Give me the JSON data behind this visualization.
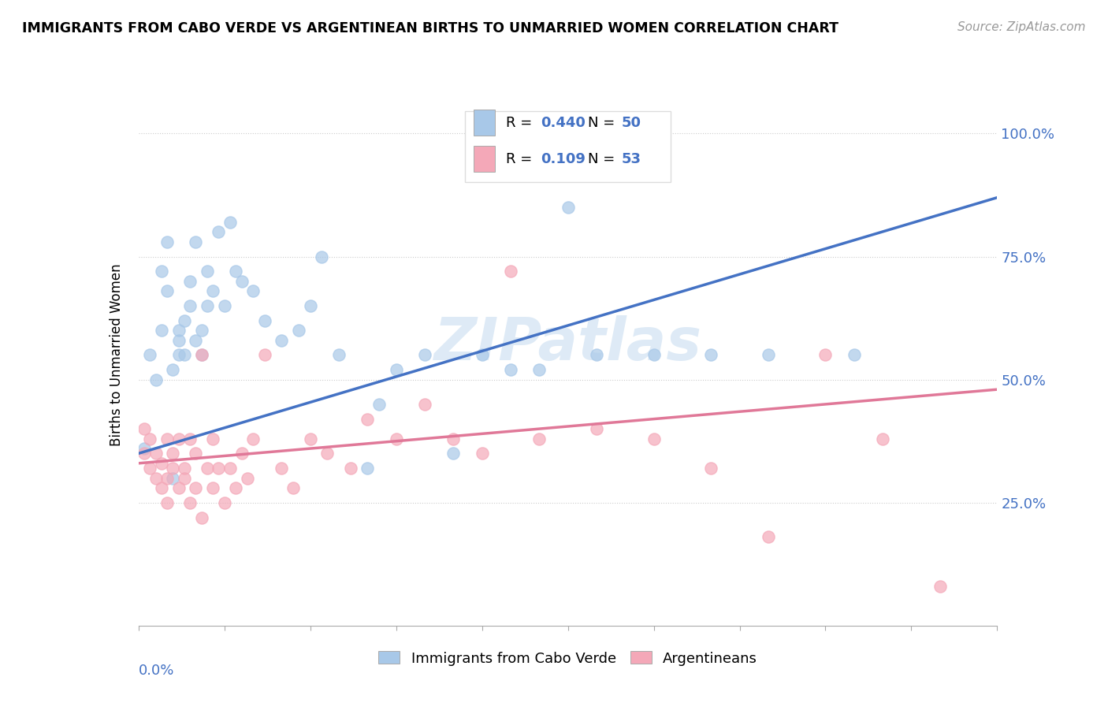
{
  "title": "IMMIGRANTS FROM CABO VERDE VS ARGENTINEAN BIRTHS TO UNMARRIED WOMEN CORRELATION CHART",
  "source": "Source: ZipAtlas.com",
  "ylabel": "Births to Unmarried Women",
  "color_blue": "#a8c8e8",
  "color_pink": "#f4a8b8",
  "color_blue_line": "#4472c4",
  "color_pink_line": "#e07898",
  "color_blue_text": "#4472c4",
  "background": "#ffffff",
  "xmin": 0.0,
  "xmax": 0.15,
  "ymin": 0.0,
  "ymax": 1.1,
  "ytick_positions": [
    0.25,
    0.5,
    0.75,
    1.0
  ],
  "ytick_labels": [
    "25.0%",
    "50.0%",
    "75.0%",
    "100.0%"
  ],
  "cabo_verde_x": [
    0.001,
    0.002,
    0.003,
    0.004,
    0.004,
    0.005,
    0.005,
    0.006,
    0.006,
    0.007,
    0.007,
    0.007,
    0.008,
    0.008,
    0.009,
    0.009,
    0.01,
    0.01,
    0.011,
    0.011,
    0.012,
    0.012,
    0.013,
    0.014,
    0.015,
    0.016,
    0.017,
    0.018,
    0.02,
    0.022,
    0.025,
    0.028,
    0.03,
    0.032,
    0.035,
    0.04,
    0.042,
    0.045,
    0.05,
    0.055,
    0.06,
    0.065,
    0.07,
    0.075,
    0.08,
    0.085,
    0.09,
    0.1,
    0.11,
    0.125
  ],
  "cabo_verde_y": [
    0.36,
    0.55,
    0.5,
    0.6,
    0.72,
    0.68,
    0.78,
    0.3,
    0.52,
    0.55,
    0.6,
    0.58,
    0.62,
    0.55,
    0.7,
    0.65,
    0.58,
    0.78,
    0.6,
    0.55,
    0.65,
    0.72,
    0.68,
    0.8,
    0.65,
    0.82,
    0.72,
    0.7,
    0.68,
    0.62,
    0.58,
    0.6,
    0.65,
    0.75,
    0.55,
    0.32,
    0.45,
    0.52,
    0.55,
    0.35,
    0.55,
    0.52,
    0.52,
    0.85,
    0.55,
    0.95,
    0.55,
    0.55,
    0.55,
    0.55
  ],
  "argentinean_x": [
    0.001,
    0.001,
    0.002,
    0.002,
    0.003,
    0.003,
    0.004,
    0.004,
    0.005,
    0.005,
    0.005,
    0.006,
    0.006,
    0.007,
    0.007,
    0.008,
    0.008,
    0.009,
    0.009,
    0.01,
    0.01,
    0.011,
    0.011,
    0.012,
    0.013,
    0.013,
    0.014,
    0.015,
    0.016,
    0.017,
    0.018,
    0.019,
    0.02,
    0.022,
    0.025,
    0.027,
    0.03,
    0.033,
    0.037,
    0.04,
    0.045,
    0.05,
    0.055,
    0.06,
    0.065,
    0.07,
    0.08,
    0.09,
    0.1,
    0.11,
    0.12,
    0.13,
    0.14
  ],
  "argentinean_y": [
    0.35,
    0.4,
    0.32,
    0.38,
    0.3,
    0.35,
    0.28,
    0.33,
    0.25,
    0.3,
    0.38,
    0.32,
    0.35,
    0.28,
    0.38,
    0.32,
    0.3,
    0.25,
    0.38,
    0.28,
    0.35,
    0.22,
    0.55,
    0.32,
    0.28,
    0.38,
    0.32,
    0.25,
    0.32,
    0.28,
    0.35,
    0.3,
    0.38,
    0.55,
    0.32,
    0.28,
    0.38,
    0.35,
    0.32,
    0.42,
    0.38,
    0.45,
    0.38,
    0.35,
    0.72,
    0.38,
    0.4,
    0.38,
    0.32,
    0.18,
    0.55,
    0.38,
    0.08
  ]
}
